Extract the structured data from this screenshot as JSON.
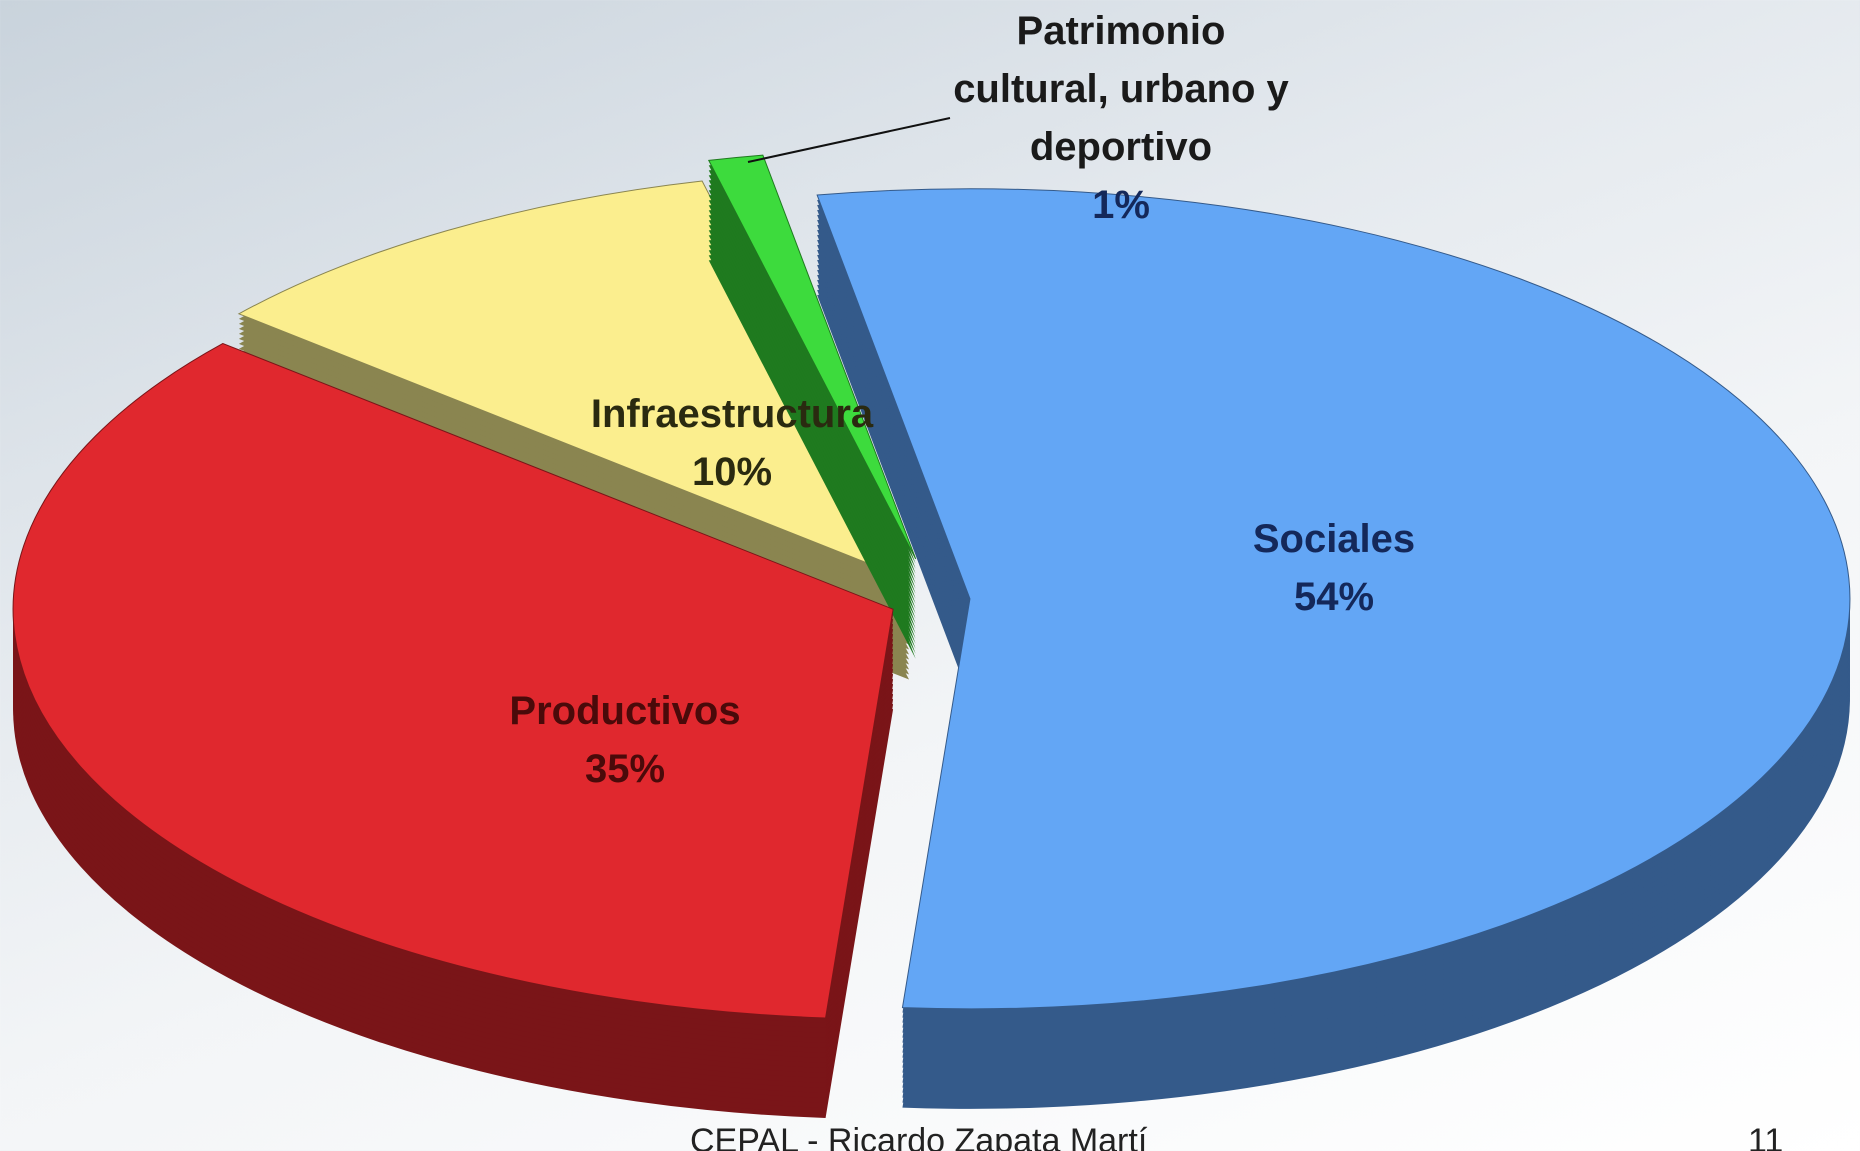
{
  "chart_data": {
    "type": "pie",
    "categories": [
      "Sociales",
      "Productivos",
      "Infraestructura",
      "Patrimonio cultural, urbano y deportivo"
    ],
    "values": [
      54,
      35,
      10,
      1
    ],
    "value_labels": [
      "54%",
      "35%",
      "10%",
      "1%"
    ],
    "colors": [
      "#63a6f5",
      "#e0282e",
      "#fbee8e",
      "#3ddb3d"
    ],
    "side_colors": [
      "#345a8a",
      "#7a1518",
      "#8a8550",
      "#1f7a1f"
    ]
  },
  "footer": {
    "text": "CEPAL - Ricardo Zapata Martí",
    "page": "11"
  }
}
